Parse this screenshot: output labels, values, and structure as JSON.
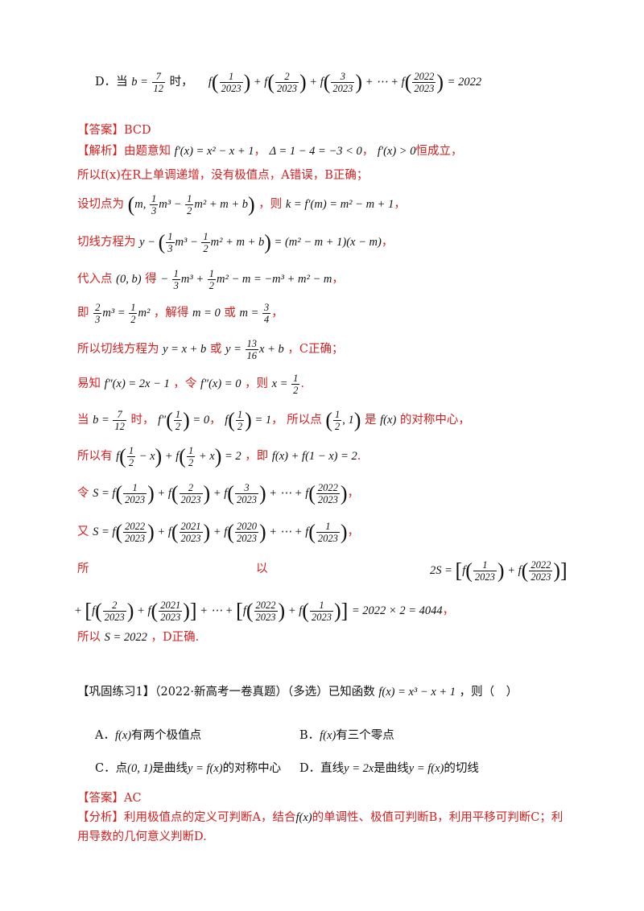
{
  "option_D_line": {
    "label": "D．当",
    "suffix": "时，",
    "expr_tail": "= 2022"
  },
  "answer1": {
    "text": "【答案】BCD"
  },
  "solution": {
    "l1_head": "【解析】",
    "l1_text": "由题意知",
    "l1_delta": "Δ = 1 − 4 = −3 < 0",
    "l1_end": "恒成立，",
    "l2": "所以f(x)在R上单调递增，没有极值点，A错误，B正确；",
    "l3_a": "设切点为",
    "l3_b": "，则",
    "l3_c": "k = f′(m) = m² − m + 1",
    "l4_a": "切线方程为",
    "l5_a": "代入点",
    "l5_pt": "(0, b)",
    "l5_b": "得",
    "l6_a": "即",
    "l6_b": "，解得",
    "l6_c": "m = 0",
    "l6_d": "或",
    "l7_a": "所以切线方程为",
    "l7_b": "y = x + b",
    "l7_c": "或",
    "l7_d": "，C正确；",
    "l8_a": "易知",
    "l8_b": "f″(x) = 2x − 1",
    "l8_c": "，令",
    "l8_d": "f″(x) = 0",
    "l8_e": "，则",
    "l9_a": "当",
    "l9_b": "时，",
    "l9_c": "所以点",
    "l9_d": "是",
    "l9_e": "的对称中心，",
    "l10_a": "所以有",
    "l10_b": "，即",
    "l10_c": "f(x) + f(1 − x) = 2",
    "l11_a": "令",
    "l12_a": "又",
    "l13_a": "所",
    "l13_b": "以",
    "l14_tail": "= 2022 × 2 = 4044",
    "l15_a": "所以",
    "l15_b": "S = 2022",
    "l15_c": "，D正确."
  },
  "practice": {
    "head": "【巩固练习1】（2022·新高考一卷真题）（多选）已知函数",
    "func": "f(x) = x³ − x + 1",
    "tail": "，则（　）",
    "optA_label": "A．",
    "optA_func": "f(x)",
    "optA_text": "有两个极值点",
    "optB_label": "B．",
    "optB_func": "f(x)",
    "optB_text": "有三个零点",
    "optC_label": "C．点",
    "optC_pt": "(0, 1)",
    "optC_mid": "是曲线",
    "optC_func": "y = f(x)",
    "optC_text": "的对称中心",
    "optD_label": "D．直线",
    "optD_line": "y = 2x",
    "optD_mid": "是曲线",
    "optD_func": "y = f(x)",
    "optD_text": "的切线"
  },
  "answer2": {
    "text": "【答案】AC"
  },
  "analysis": {
    "head": "【分析】",
    "l1_a": "利用极值点的定义可判断A，结合",
    "l1_func": "f(x)",
    "l1_b": "的单调性、极值可判断B，利用平移可判断C；利",
    "l2": "用导数的几何意义判断D."
  }
}
